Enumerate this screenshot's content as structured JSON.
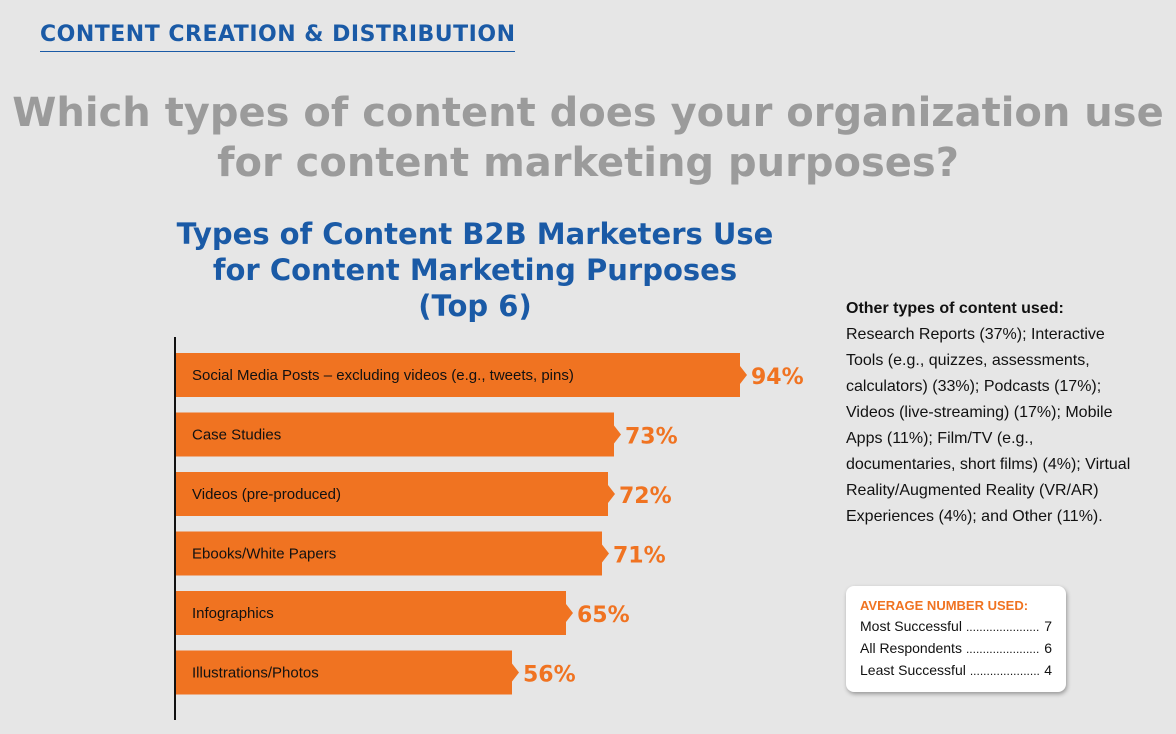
{
  "header": {
    "section_title": "CONTENT CREATION & DISTRIBUTION",
    "question_line1": "Which types of content does your organization use",
    "question_line2": "for content marketing purposes?"
  },
  "chart_data": {
    "type": "bar",
    "orientation": "horizontal",
    "title_line1": "Types of Content B2B Marketers Use",
    "title_line2": "for Content Marketing Purposes",
    "title_line3": "(Top 6)",
    "categories": [
      "Social Media Posts – excluding videos (e.g., tweets, pins)",
      "Case Studies",
      "Videos (pre-produced)",
      "Ebooks/White Papers",
      "Infographics",
      "Illustrations/Photos"
    ],
    "values": [
      94,
      73,
      72,
      71,
      65,
      56
    ],
    "value_labels": [
      "94%",
      "73%",
      "72%",
      "71%",
      "65%",
      "56%"
    ],
    "bar_color": "#f07321",
    "grid": false
  },
  "other_content": {
    "heading": "Other types of content used:",
    "text": "Research Reports (37%); Interactive Tools (e.g., quizzes, assessments, calculators) (33%); Podcasts (17%); Videos (live-streaming) (17%); Mobile Apps (11%); Film/TV (e.g., documentaries, short films) (4%); Virtual Reality/Augmented Reality (VR/AR) Experiences (4%); and Other (11%)."
  },
  "average_box": {
    "heading": "AVERAGE NUMBER USED:",
    "rows": [
      {
        "label": "Most Successful",
        "value": "7"
      },
      {
        "label": "All Respondents",
        "value": "6"
      },
      {
        "label": "Least Successful",
        "value": "4"
      }
    ]
  },
  "colors": {
    "accent_blue": "#1a5aa6",
    "accent_orange": "#f07321",
    "question_gray": "#9b9b9b",
    "background": "#e6e6e6"
  }
}
